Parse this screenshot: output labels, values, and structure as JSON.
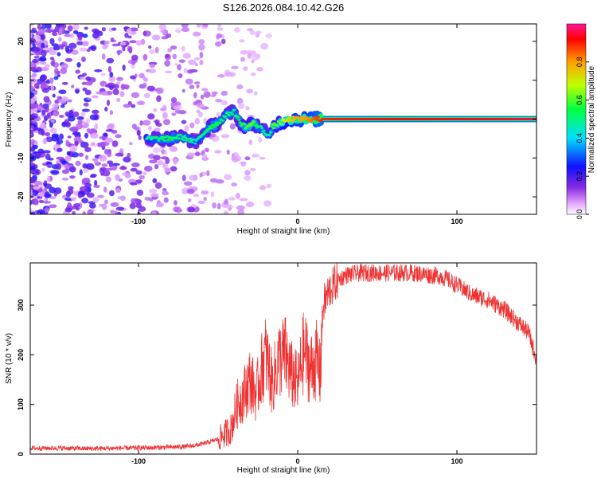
{
  "title": "S126.2026.084.10.42.G26",
  "chart_data": [
    {
      "type": "heatmap",
      "title": "S126.2026.084.10.42.G26",
      "xlabel": "Height of straight line (km)",
      "ylabel": "Frequency (Hz)",
      "xlim": [
        -168,
        150
      ],
      "ylim": [
        -24.5,
        24.5
      ],
      "x_ticks": [
        -100,
        0,
        100
      ],
      "x_tick_labels": [
        "-100",
        "0",
        "100"
      ],
      "y_ticks": [
        -20,
        -10,
        0,
        10,
        20
      ],
      "y_tick_labels": [
        "-20",
        "-10",
        "0",
        "10",
        "20"
      ],
      "colorbar": {
        "label": "Normalized spectral amplitude",
        "range": [
          0,
          1
        ],
        "ticks": [
          0.0,
          0.2,
          0.4,
          0.6,
          0.8
        ],
        "tick_labels": [
          "0.0",
          "0.2",
          "0.4",
          "0.6",
          "0.8"
        ]
      },
      "ridge": {
        "description_x": [
          -95,
          -88,
          -80,
          -74,
          -70,
          -64,
          -60,
          -55,
          -50,
          -45,
          -40,
          -36,
          -32,
          -28,
          -24,
          -20,
          -18,
          -16,
          -12,
          -8,
          -4,
          0,
          5,
          10,
          15,
          150
        ],
        "frequency": [
          -5,
          -5,
          -5,
          -4.5,
          -5,
          -6,
          -4,
          -2,
          -1,
          1,
          2,
          -1,
          -2,
          -1,
          -2,
          -3.5,
          -4.5,
          -2,
          -1,
          -0.5,
          0,
          0,
          0,
          0,
          0,
          0
        ],
        "amplitude": [
          0.45,
          0.5,
          0.55,
          0.5,
          0.5,
          0.45,
          0.5,
          0.55,
          0.55,
          0.5,
          0.5,
          0.55,
          0.6,
          0.6,
          0.5,
          0.5,
          0.45,
          0.6,
          0.6,
          0.7,
          0.75,
          0.8,
          0.8,
          0.85,
          0.9,
          0.95
        ]
      }
    },
    {
      "type": "line",
      "xlabel": "Height of straight line (km)",
      "ylabel": "SNR (10 * v/v)",
      "xlim": [
        -168,
        150
      ],
      "ylim": [
        0,
        385
      ],
      "x_ticks": [
        -100,
        0,
        100
      ],
      "x_tick_labels": [
        "-100",
        "0",
        "100"
      ],
      "y_ticks": [
        0,
        100,
        200,
        300
      ],
      "y_tick_labels": [
        "0",
        "100",
        "200",
        "300"
      ],
      "series": [
        {
          "name": "SNR",
          "color": "#ee3333",
          "x": [
            -168,
            -150,
            -130,
            -110,
            -90,
            -70,
            -60,
            -50,
            -42,
            -38,
            -34,
            -30,
            -26,
            -22,
            -20,
            -16,
            -12,
            -8,
            -4,
            0,
            4,
            8,
            12,
            14,
            16,
            20,
            25,
            30,
            40,
            50,
            60,
            70,
            80,
            90,
            95,
            100,
            105,
            110,
            115,
            120,
            125,
            130,
            135,
            140,
            145,
            150
          ],
          "y": [
            12,
            12,
            11,
            12,
            13,
            15,
            20,
            30,
            50,
            100,
            120,
            150,
            120,
            180,
            200,
            140,
            190,
            200,
            160,
            140,
            210,
            170,
            190,
            160,
            300,
            330,
            350,
            360,
            365,
            365,
            365,
            365,
            362,
            358,
            350,
            340,
            330,
            320,
            315,
            310,
            300,
            290,
            275,
            260,
            245,
            190
          ]
        }
      ]
    }
  ]
}
